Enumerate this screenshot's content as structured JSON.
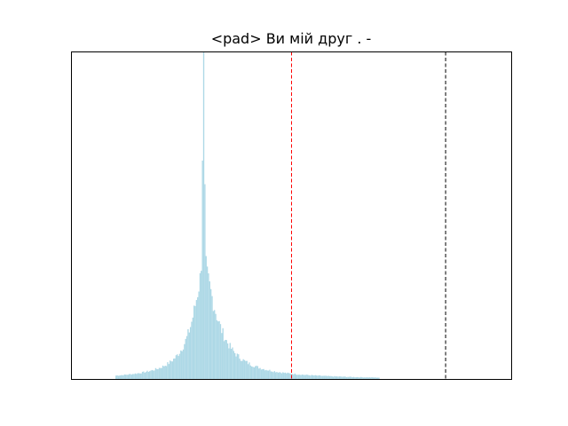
{
  "chart_data": {
    "type": "histogram",
    "title": "<pad> Ви мій друг . -",
    "xlabel": "",
    "ylabel": "",
    "xlim": [
      -5.0,
      5.0
    ],
    "ylim": [
      0,
      1.0
    ],
    "grid": false,
    "axis_ticks_visible": false,
    "bar_color": "#add8e6",
    "distribution": {
      "peak_x": -2.0,
      "peak_value": 1.0,
      "shape": "sharp peak with heavy tails",
      "support": [
        -4.0,
        2.0
      ]
    },
    "reference_lines": [
      {
        "x": 0.0,
        "color": "#ff0000",
        "style": "dashed"
      },
      {
        "x": 3.5,
        "color": "#000000",
        "style": "dashed"
      }
    ]
  }
}
